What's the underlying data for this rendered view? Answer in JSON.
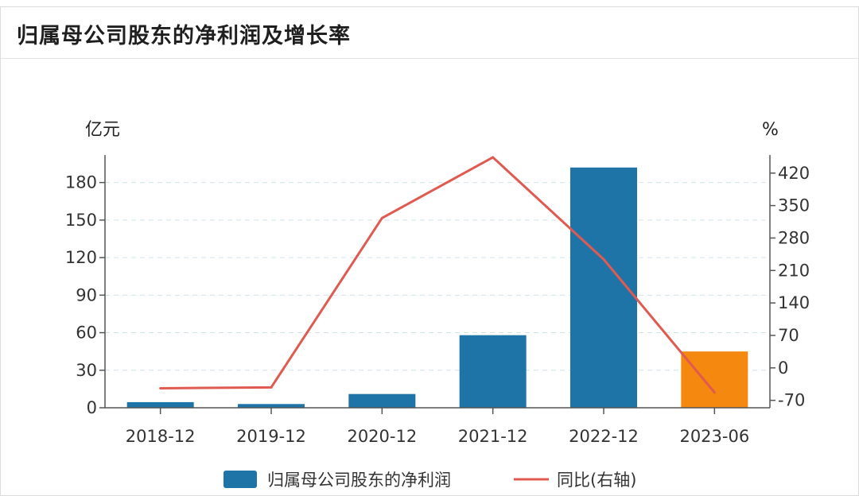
{
  "title": "归属母公司股东的净利润及增长率",
  "chart_data": {
    "type": "bar",
    "categories": [
      "2018-12",
      "2019-12",
      "2020-12",
      "2021-12",
      "2022-12",
      "2023-06"
    ],
    "y_left_unit": "亿元",
    "y_right_unit": "%",
    "y_left_ticks": [
      0,
      30,
      60,
      90,
      120,
      150,
      180
    ],
    "y_right_ticks": [
      -70,
      0,
      70,
      140,
      210,
      280,
      350,
      420
    ],
    "ylim_left": [
      0,
      202
    ],
    "ylim_right": [
      -86,
      459
    ],
    "series": [
      {
        "name": "归属母公司股东的净利润",
        "type": "bar",
        "axis": "left",
        "values": [
          4.5,
          3.0,
          11.0,
          58.0,
          192.0,
          45.0
        ],
        "colors": [
          "#1f74a7",
          "#1f74a7",
          "#1f74a7",
          "#1f74a7",
          "#1f74a7",
          "#f5880f"
        ]
      },
      {
        "name": "同比(右轴)",
        "type": "line",
        "axis": "right",
        "color": "#e05a50",
        "values": [
          -44,
          -42,
          323,
          454,
          234,
          -53
        ]
      }
    ],
    "grid": true,
    "legend_position": "bottom"
  }
}
